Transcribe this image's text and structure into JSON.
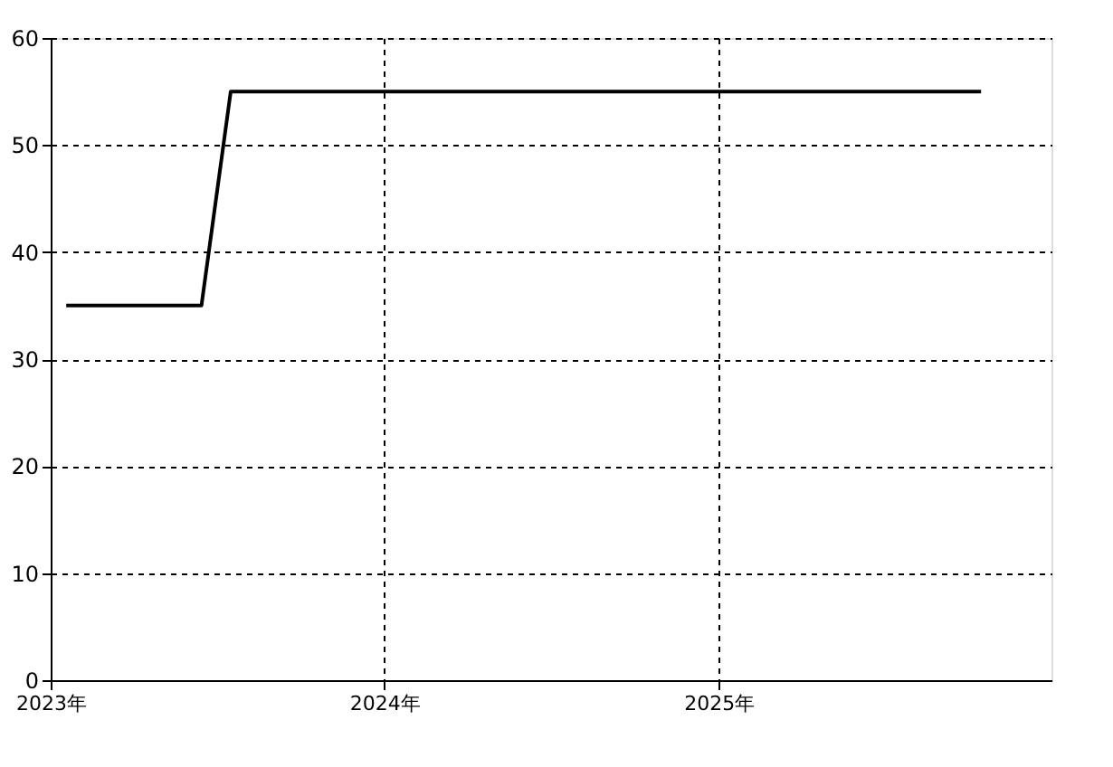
{
  "chart_data": {
    "type": "line",
    "x": [
      "2023-01-18",
      "2023-06-15",
      "2023-07-17",
      "2025-10-15"
    ],
    "series": [
      {
        "color": "#000000",
        "values": [
          35,
          35,
          55,
          55
        ]
      }
    ],
    "xlim": [
      "2023-01-01",
      "2025-12-31"
    ],
    "xticks": [
      {
        "value": "2023",
        "label": "2023年"
      },
      {
        "value": "2024",
        "label": "2024年"
      },
      {
        "value": "2025",
        "label": "2025年"
      }
    ],
    "ylim": [
      0,
      60
    ],
    "yticks": [
      0,
      10,
      20,
      30,
      40,
      50,
      60
    ],
    "grid": true,
    "marker": "none",
    "line_style": "solid"
  }
}
